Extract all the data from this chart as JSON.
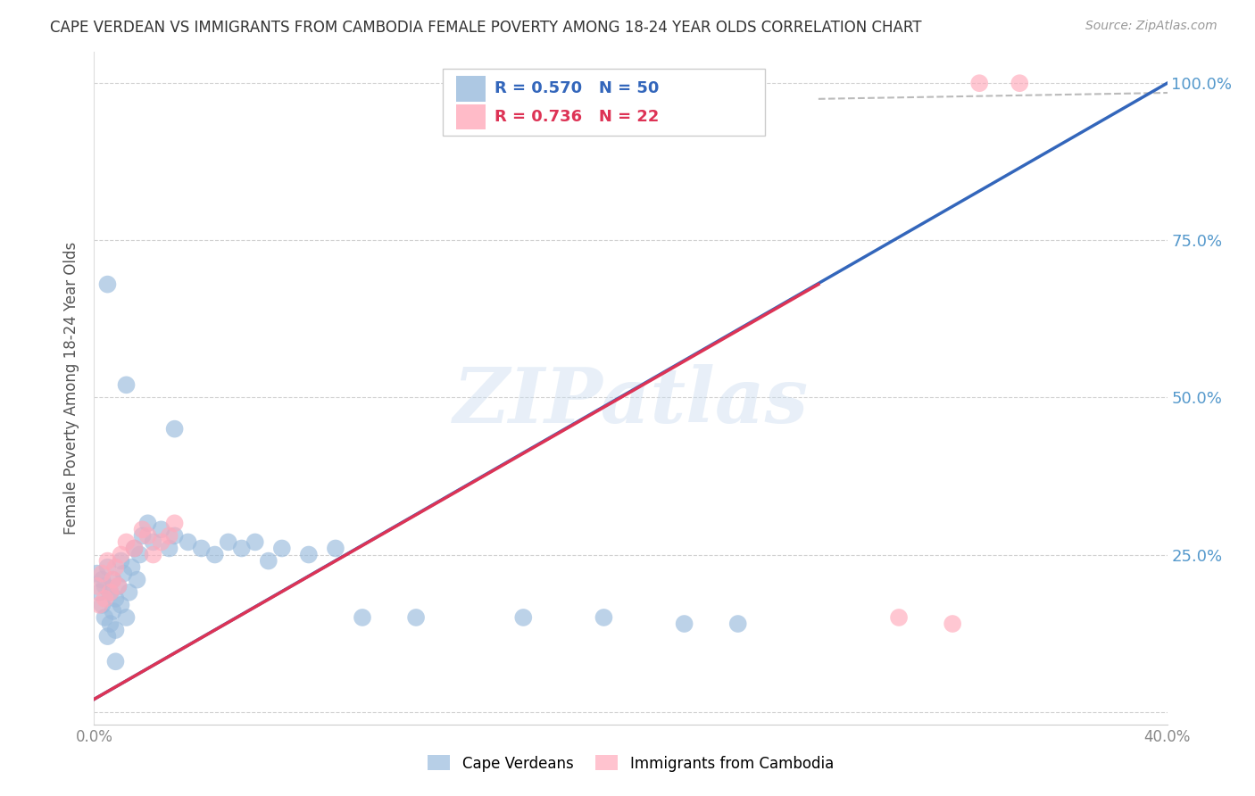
{
  "title": "CAPE VERDEAN VS IMMIGRANTS FROM CAMBODIA FEMALE POVERTY AMONG 18-24 YEAR OLDS CORRELATION CHART",
  "source": "Source: ZipAtlas.com",
  "ylabel": "Female Poverty Among 18-24 Year Olds",
  "xlim": [
    0.0,
    0.4
  ],
  "ylim": [
    -0.02,
    1.05
  ],
  "watermark": "ZIPatlas",
  "blue_color": "#99BBDD",
  "pink_color": "#FFAABB",
  "line_blue_color": "#3366BB",
  "line_pink_color": "#DD3355",
  "background_color": "#FFFFFF",
  "grid_color": "#CCCCCC",
  "title_color": "#333333",
  "axis_label_color": "#555555",
  "right_axis_color": "#5599CC",
  "bottom_axis_color": "#888888",
  "source_color": "#999999",
  "blue_trendline_x": [
    0.0,
    0.4
  ],
  "blue_trendline_y": [
    0.02,
    1.0
  ],
  "pink_trendline_x": [
    0.0,
    0.27
  ],
  "pink_trendline_y": [
    0.02,
    0.68
  ],
  "dashed_line_x": [
    0.27,
    0.74
  ],
  "dashed_line_y": [
    0.975,
    1.01
  ],
  "scatter_blue_x": [
    0.001,
    0.002,
    0.003,
    0.003,
    0.004,
    0.004,
    0.005,
    0.005,
    0.006,
    0.006,
    0.007,
    0.007,
    0.008,
    0.008,
    0.009,
    0.01,
    0.01,
    0.011,
    0.012,
    0.013,
    0.014,
    0.015,
    0.016,
    0.017,
    0.018,
    0.02,
    0.022,
    0.025,
    0.028,
    0.03,
    0.035,
    0.04,
    0.045,
    0.05,
    0.055,
    0.06,
    0.065,
    0.07,
    0.08,
    0.09,
    0.1,
    0.12,
    0.16,
    0.19,
    0.22,
    0.24,
    0.005,
    0.03,
    0.012,
    0.008
  ],
  "scatter_blue_y": [
    0.22,
    0.19,
    0.21,
    0.17,
    0.2,
    0.15,
    0.23,
    0.12,
    0.19,
    0.14,
    0.21,
    0.16,
    0.18,
    0.13,
    0.2,
    0.24,
    0.17,
    0.22,
    0.15,
    0.19,
    0.23,
    0.26,
    0.21,
    0.25,
    0.28,
    0.3,
    0.27,
    0.29,
    0.26,
    0.28,
    0.27,
    0.26,
    0.25,
    0.27,
    0.26,
    0.27,
    0.24,
    0.26,
    0.25,
    0.26,
    0.15,
    0.15,
    0.15,
    0.15,
    0.14,
    0.14,
    0.68,
    0.45,
    0.52,
    0.08
  ],
  "scatter_pink_x": [
    0.001,
    0.002,
    0.003,
    0.004,
    0.005,
    0.006,
    0.007,
    0.008,
    0.009,
    0.01,
    0.012,
    0.015,
    0.018,
    0.02,
    0.022,
    0.025,
    0.028,
    0.03,
    0.3,
    0.32,
    0.33,
    0.345
  ],
  "scatter_pink_y": [
    0.2,
    0.17,
    0.22,
    0.18,
    0.24,
    0.19,
    0.21,
    0.23,
    0.2,
    0.25,
    0.27,
    0.26,
    0.29,
    0.28,
    0.25,
    0.27,
    0.28,
    0.3,
    0.15,
    0.14,
    1.0,
    1.0
  ]
}
